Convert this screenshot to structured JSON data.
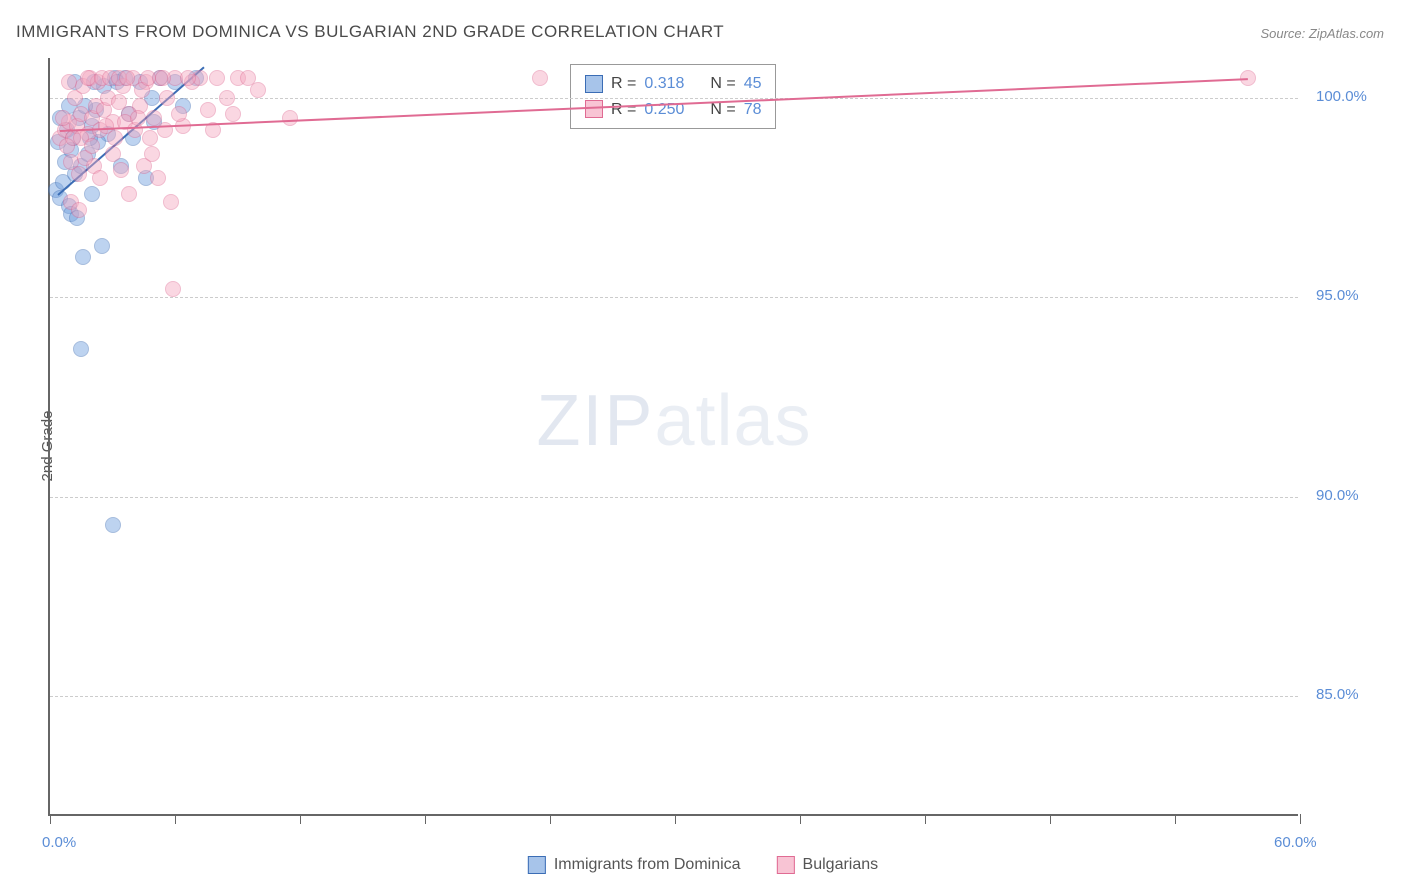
{
  "title": "IMMIGRANTS FROM DOMINICA VS BULGARIAN 2ND GRADE CORRELATION CHART",
  "source": "Source: ZipAtlas.com",
  "ylabel": "2nd Grade",
  "watermark": {
    "part1": "ZIP",
    "part2": "atlas"
  },
  "chart": {
    "type": "scatter",
    "xlim": [
      0,
      60
    ],
    "ylim": [
      82,
      101
    ],
    "yticks": [
      {
        "value": 100,
        "label": "100.0%"
      },
      {
        "value": 95,
        "label": "95.0%"
      },
      {
        "value": 90,
        "label": "90.0%"
      },
      {
        "value": 85,
        "label": "85.0%"
      }
    ],
    "xticks_major": [
      0,
      60
    ],
    "xtick_labels": [
      {
        "value": 0,
        "label": "0.0%"
      },
      {
        "value": 60,
        "label": "60.0%"
      }
    ],
    "xticks_minor": [
      6,
      12,
      18,
      24,
      30,
      36,
      42,
      48,
      54
    ],
    "grid_color": "#cccccc",
    "background_color": "#ffffff",
    "marker_radius": 8,
    "marker_opacity": 0.45,
    "series": [
      {
        "name": "Immigrants from Dominica",
        "color_fill": "#6f9fde",
        "color_stroke": "#3b6db5",
        "R": "0.318",
        "N": "45",
        "trend": {
          "x1": 0.4,
          "y1": 97.6,
          "x2": 7.4,
          "y2": 100.8
        },
        "points": [
          [
            0.3,
            97.7
          ],
          [
            0.5,
            97.5
          ],
          [
            0.6,
            97.9
          ],
          [
            0.9,
            97.3
          ],
          [
            1.0,
            97.1
          ],
          [
            1.2,
            98.1
          ],
          [
            0.7,
            98.4
          ],
          [
            1.0,
            98.7
          ],
          [
            1.5,
            98.3
          ],
          [
            0.4,
            98.9
          ],
          [
            1.8,
            98.6
          ],
          [
            0.8,
            99.2
          ],
          [
            1.4,
            99.5
          ],
          [
            2.0,
            99.3
          ],
          [
            2.2,
            99.7
          ],
          [
            2.6,
            100.3
          ],
          [
            3.1,
            100.5
          ],
          [
            3.6,
            100.5
          ],
          [
            4.0,
            99.0
          ],
          [
            4.3,
            100.4
          ],
          [
            5.0,
            99.4
          ],
          [
            5.3,
            100.5
          ],
          [
            6.0,
            100.4
          ],
          [
            6.4,
            99.8
          ],
          [
            7.0,
            100.5
          ],
          [
            2.5,
            96.3
          ],
          [
            1.6,
            96.0
          ],
          [
            3.0,
            89.3
          ],
          [
            1.5,
            93.7
          ],
          [
            0.9,
            99.8
          ],
          [
            1.2,
            100.4
          ],
          [
            3.4,
            98.3
          ],
          [
            2.0,
            97.6
          ],
          [
            4.6,
            98.0
          ],
          [
            2.8,
            99.1
          ],
          [
            3.8,
            99.6
          ],
          [
            1.3,
            97.0
          ],
          [
            1.1,
            99.0
          ],
          [
            1.7,
            99.8
          ],
          [
            0.5,
            99.5
          ],
          [
            2.3,
            98.9
          ],
          [
            4.9,
            100.0
          ],
          [
            2.1,
            100.4
          ],
          [
            1.9,
            99.0
          ],
          [
            3.2,
            100.4
          ]
        ]
      },
      {
        "name": "Bulgarians",
        "color_fill": "#f4a8c0",
        "color_stroke": "#e06b93",
        "R": "0.250",
        "N": "78",
        "trend": {
          "x1": 0.5,
          "y1": 99.2,
          "x2": 57.5,
          "y2": 100.5
        },
        "points": [
          [
            0.5,
            99.0
          ],
          [
            0.7,
            99.2
          ],
          [
            0.9,
            99.4
          ],
          [
            1.1,
            99.0
          ],
          [
            1.3,
            99.3
          ],
          [
            1.5,
            99.6
          ],
          [
            1.8,
            99.1
          ],
          [
            2.0,
            99.5
          ],
          [
            2.2,
            99.8
          ],
          [
            2.4,
            99.2
          ],
          [
            2.6,
            99.7
          ],
          [
            2.8,
            100.0
          ],
          [
            3.0,
            99.4
          ],
          [
            3.3,
            99.9
          ],
          [
            3.5,
            100.3
          ],
          [
            3.8,
            99.6
          ],
          [
            4.0,
            100.5
          ],
          [
            4.3,
            99.8
          ],
          [
            4.6,
            100.4
          ],
          [
            5.0,
            99.5
          ],
          [
            5.3,
            100.5
          ],
          [
            5.6,
            100.0
          ],
          [
            6.0,
            100.5
          ],
          [
            6.4,
            99.3
          ],
          [
            6.8,
            100.4
          ],
          [
            7.2,
            100.5
          ],
          [
            7.6,
            99.7
          ],
          [
            8.0,
            100.5
          ],
          [
            8.5,
            100.0
          ],
          [
            9.0,
            100.5
          ],
          [
            9.5,
            100.5
          ],
          [
            11.5,
            99.5
          ],
          [
            23.5,
            100.5
          ],
          [
            57.5,
            100.5
          ],
          [
            2.1,
            98.3
          ],
          [
            2.4,
            98.0
          ],
          [
            3.0,
            98.6
          ],
          [
            3.4,
            98.2
          ],
          [
            3.8,
            97.6
          ],
          [
            4.5,
            98.3
          ],
          [
            5.2,
            98.0
          ],
          [
            5.8,
            97.4
          ],
          [
            5.9,
            95.2
          ],
          [
            1.0,
            98.4
          ],
          [
            1.4,
            98.1
          ],
          [
            1.7,
            98.5
          ],
          [
            0.8,
            98.8
          ],
          [
            0.6,
            99.5
          ],
          [
            1.2,
            100.0
          ],
          [
            1.6,
            100.3
          ],
          [
            1.9,
            100.5
          ],
          [
            2.3,
            100.4
          ],
          [
            2.7,
            99.3
          ],
          [
            3.1,
            99.0
          ],
          [
            3.6,
            99.4
          ],
          [
            4.1,
            99.2
          ],
          [
            4.4,
            100.2
          ],
          [
            4.8,
            99.0
          ],
          [
            5.5,
            99.2
          ],
          [
            6.2,
            99.6
          ],
          [
            1.0,
            97.4
          ],
          [
            1.4,
            97.2
          ],
          [
            0.9,
            100.4
          ],
          [
            1.5,
            99.0
          ],
          [
            1.8,
            100.5
          ],
          [
            2.5,
            100.5
          ],
          [
            2.9,
            100.5
          ],
          [
            3.3,
            100.5
          ],
          [
            3.7,
            100.5
          ],
          [
            4.2,
            99.5
          ],
          [
            4.7,
            100.5
          ],
          [
            5.4,
            100.5
          ],
          [
            6.6,
            100.5
          ],
          [
            7.8,
            99.2
          ],
          [
            8.8,
            99.6
          ],
          [
            10.0,
            100.2
          ],
          [
            4.9,
            98.6
          ],
          [
            2.0,
            98.8
          ]
        ]
      }
    ]
  },
  "correlation_box": {
    "rows": [
      {
        "swatch_fill": "#a7c4ea",
        "swatch_stroke": "#3b6db5",
        "R_label": "R =",
        "R": "0.318",
        "N_label": "N =",
        "N": "45"
      },
      {
        "swatch_fill": "#f8c4d4",
        "swatch_stroke": "#e06b93",
        "R_label": "R =",
        "R": "0.250",
        "N_label": "N =",
        "N": "78"
      }
    ]
  },
  "legend_bottom": [
    {
      "swatch_fill": "#a7c4ea",
      "swatch_stroke": "#3b6db5",
      "label": "Immigrants from Dominica"
    },
    {
      "swatch_fill": "#f8c4d4",
      "swatch_stroke": "#e06b93",
      "label": "Bulgarians"
    }
  ]
}
